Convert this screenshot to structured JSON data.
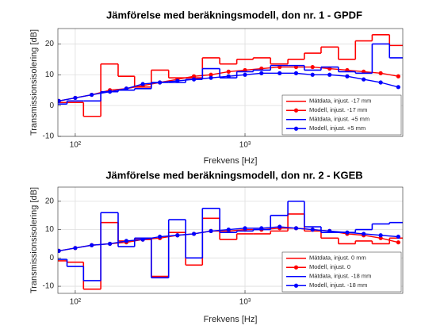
{
  "chart_data": [
    {
      "type": "line",
      "title": "Jämförelse med beräkningsmodell, don nr. 1 - GPDF",
      "xlabel": "Frekvens [Hz]",
      "ylabel": "Transmissionsisolering [dB]",
      "x": [
        80,
        100,
        125,
        160,
        200,
        250,
        315,
        400,
        500,
        630,
        800,
        1000,
        1250,
        1600,
        2000,
        2500,
        3150,
        4000,
        5000,
        6300,
        8000
      ],
      "xscale": "log",
      "xlim": [
        79,
        8500
      ],
      "xticks": [
        {
          "value": 100,
          "label": "10²"
        },
        {
          "value": 1000,
          "label": "10³"
        }
      ],
      "ylim": [
        -10,
        25
      ],
      "yticks": [
        -10,
        0,
        10,
        20
      ],
      "grid": true,
      "legend": "lower right",
      "series": [
        {
          "name": "Mätdata, injust. -17 mm",
          "color": "#ff0000",
          "style": "step",
          "values": [
            1,
            1,
            -3.5,
            13.5,
            9.5,
            6,
            11.5,
            9,
            9,
            15.5,
            13.5,
            15,
            15.5,
            13.5,
            15,
            17,
            19,
            15,
            21,
            23,
            19.5
          ]
        },
        {
          "name": "Modell, injust. -17 mm",
          "color": "#ff0000",
          "style": "marker",
          "values": [
            1.5,
            2.5,
            3.5,
            5,
            5.5,
            6.5,
            7.5,
            8.5,
            9.5,
            10,
            11,
            11.5,
            12,
            12.5,
            12.5,
            12.5,
            12,
            11.5,
            11,
            10.5,
            9.5
          ]
        },
        {
          "name": "Mätdata, injust. +5 mm",
          "color": "#0000ff",
          "style": "step",
          "values": [
            0.5,
            1.5,
            1.5,
            4.5,
            5,
            5.5,
            7.5,
            7.5,
            8.5,
            12,
            9,
            11,
            11.5,
            13,
            13,
            11.5,
            12.5,
            11,
            10.5,
            20,
            15.5
          ]
        },
        {
          "name": "Modell, injust. +5 mm",
          "color": "#0000ff",
          "style": "marker",
          "values": [
            1.5,
            2.5,
            3.5,
            4.5,
            5.5,
            7,
            7.5,
            8,
            8.5,
            9,
            9.5,
            10,
            10.5,
            10.5,
            10.5,
            10,
            10,
            9.5,
            8.5,
            7.5,
            6
          ]
        }
      ]
    },
    {
      "type": "line",
      "title": "Jämförelse med beräkningsmodell, don nr. 2 - KGEB",
      "xlabel": "Frekvens [Hz]",
      "ylabel": "Transmissionsisolering [dB]",
      "x": [
        80,
        100,
        125,
        160,
        200,
        250,
        315,
        400,
        500,
        630,
        800,
        1000,
        1250,
        1600,
        2000,
        2500,
        3150,
        4000,
        5000,
        6300,
        8000
      ],
      "xscale": "log",
      "xlim": [
        79,
        8500
      ],
      "xticks": [
        {
          "value": 100,
          "label": "10²"
        },
        {
          "value": 1000,
          "label": "10³"
        }
      ],
      "ylim": [
        -12.5,
        25
      ],
      "yticks": [
        -10,
        0,
        10,
        20
      ],
      "grid": true,
      "legend": "lower right",
      "series": [
        {
          "name": "Mätdata, injust. 0 mm",
          "color": "#ff0000",
          "style": "step",
          "values": [
            -1,
            -1.5,
            -11,
            12.5,
            6,
            6.5,
            -6.5,
            9,
            -2.5,
            14,
            6.5,
            8.5,
            8.5,
            9.5,
            15.5,
            9.5,
            7,
            5,
            6,
            5,
            7
          ]
        },
        {
          "name": "Modell, injust. 0",
          "color": "#ff0000",
          "style": "marker",
          "values": [
            2.5,
            3.5,
            4.5,
            5,
            5.5,
            6.5,
            7,
            8,
            8.5,
            9.5,
            9.5,
            10,
            10,
            10.5,
            10.5,
            10,
            9.5,
            8.5,
            8,
            7,
            5.5
          ]
        },
        {
          "name": "Mätdata, injust. -18 mm",
          "color": "#0000ff",
          "style": "step",
          "values": [
            -0.5,
            -3,
            -8,
            16,
            4,
            7,
            -7,
            13.5,
            0,
            17.5,
            9,
            9.5,
            10,
            15,
            20,
            11,
            9,
            9,
            10,
            12,
            12.5
          ]
        },
        {
          "name": "Modell, injust. -18 mm",
          "color": "#0000ff",
          "style": "marker",
          "values": [
            2.5,
            3.5,
            4.5,
            5,
            6,
            6.5,
            7.5,
            8,
            8.5,
            9.5,
            10,
            10.5,
            10.5,
            11,
            10.5,
            10,
            9.5,
            9,
            8.5,
            8,
            7.5
          ]
        }
      ]
    }
  ]
}
